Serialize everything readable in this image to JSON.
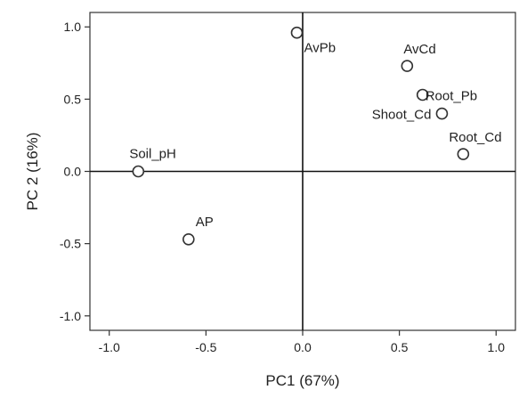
{
  "chart_data": {
    "type": "scatter",
    "title": "",
    "xlabel": "PC1 (67%)",
    "ylabel": "PC 2 (16%)",
    "xlim": [
      -1.1,
      1.1
    ],
    "ylim": [
      -1.1,
      1.1
    ],
    "xticks": [
      -1.0,
      -0.5,
      0.0,
      0.5,
      1.0
    ],
    "xtick_labels": [
      "-1.0",
      "-0.5",
      "0.0",
      "0.5",
      "1.0"
    ],
    "yticks": [
      -1.0,
      -0.5,
      0.0,
      0.5,
      1.0
    ],
    "ytick_labels": [
      "-1.0",
      "-0.5",
      "0.0",
      "0.5",
      "1.0"
    ],
    "grid": false,
    "reference_lines": {
      "x": 0,
      "y": 0
    },
    "marker": "open-circle",
    "points": [
      {
        "label": "AvPb",
        "x": -0.03,
        "y": 0.96
      },
      {
        "label": "AvCd",
        "x": 0.54,
        "y": 0.73
      },
      {
        "label": "Root_Pb",
        "x": 0.62,
        "y": 0.53
      },
      {
        "label": "Shoot_Cd",
        "x": 0.72,
        "y": 0.4
      },
      {
        "label": "Root_Cd",
        "x": 0.83,
        "y": 0.12
      },
      {
        "label": "Soil_pH",
        "x": -0.85,
        "y": 0.0
      },
      {
        "label": "AP",
        "x": -0.59,
        "y": -0.47
      }
    ]
  }
}
